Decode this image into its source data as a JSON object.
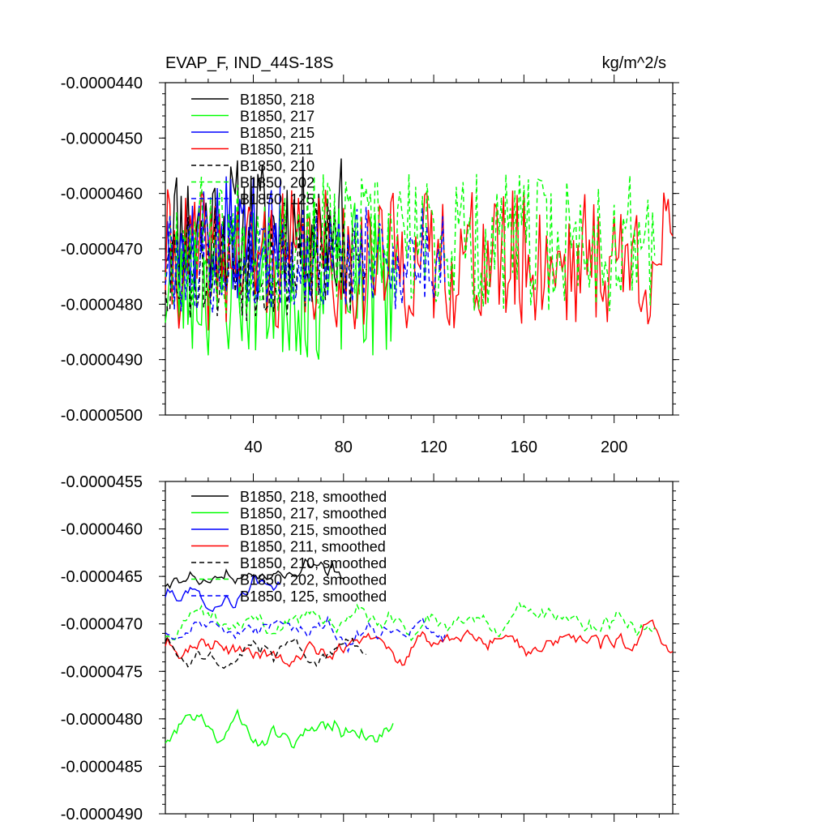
{
  "chart_data": [
    {
      "type": "line",
      "title": "EVAP_F, IND_44S-18S",
      "units": "kg/m^2/s",
      "xlabel": "",
      "ylabel": "",
      "xlim": [
        1,
        226
      ],
      "ylim": [
        -5e-05,
        -4.4e-05
      ],
      "xticks": [
        40,
        80,
        120,
        160,
        200
      ],
      "xtick_labels": [
        "40",
        "80",
        "120",
        "160",
        "200"
      ],
      "yticks": [
        -4.4e-05,
        -4.5e-05,
        -4.6e-05,
        -4.7e-05,
        -4.8e-05,
        -4.9e-05,
        -5e-05
      ],
      "ytick_labels": [
        "-0.0000440",
        "-0.0000450",
        "-0.0000460",
        "-0.0000470",
        "-0.0000480",
        "-0.0000490",
        "-0.0000500"
      ],
      "grid": false,
      "legend_position": "top-left",
      "series": [
        {
          "name": "B1850, 218",
          "color": "#000000",
          "dash": "solid",
          "length": 80,
          "mean": -4.66e-05,
          "amp": 8e-07,
          "seed": 11
        },
        {
          "name": "B1850, 217",
          "color": "#00ff00",
          "dash": "solid",
          "length": 102,
          "mean": -4.76e-05,
          "amp": 9e-07,
          "seed": 23
        },
        {
          "name": "B1850, 215",
          "color": "#0000ff",
          "dash": "solid",
          "length": 52,
          "mean": -4.68e-05,
          "amp": 7e-07,
          "seed": 37
        },
        {
          "name": "B1850, 211",
          "color": "#ff0000",
          "dash": "solid",
          "length": 226,
          "mean": -4.72e-05,
          "amp": 8e-07,
          "seed": 41
        },
        {
          "name": "B1850, 210",
          "color": "#000000",
          "dash": "dashed",
          "length": 90,
          "mean": -4.72e-05,
          "amp": 7e-07,
          "seed": 53
        },
        {
          "name": "B1850, 202",
          "color": "#00ff00",
          "dash": "dashed",
          "length": 218,
          "mean": -4.69e-05,
          "amp": 8e-07,
          "seed": 67
        },
        {
          "name": "B1850, 125",
          "color": "#0000ff",
          "dash": "dashed",
          "length": 125,
          "mean": -4.72e-05,
          "amp": 6e-07,
          "seed": 79
        }
      ]
    },
    {
      "type": "line",
      "title": "",
      "units": "",
      "xlabel": "",
      "ylabel": "",
      "xlim": [
        1,
        226
      ],
      "ylim": [
        -4.9e-05,
        -4.55e-05
      ],
      "xticks": [
        40,
        80,
        120,
        160,
        200
      ],
      "xtick_labels": [],
      "yticks": [
        -4.55e-05,
        -4.6e-05,
        -4.65e-05,
        -4.7e-05,
        -4.75e-05,
        -4.8e-05,
        -4.85e-05,
        -4.9e-05
      ],
      "ytick_labels": [
        "-0.0000455",
        "-0.0000460",
        "-0.0000465",
        "-0.0000470",
        "-0.0000475",
        "-0.0000480",
        "-0.0000485",
        "-0.0000490"
      ],
      "grid": false,
      "legend_position": "top-left",
      "series": [
        {
          "name": "B1850, 218, smoothed",
          "color": "#000000",
          "dash": "solid",
          "length": 80,
          "mean": -4.65e-05,
          "amp": 3e-07,
          "seed": 11
        },
        {
          "name": "B1850, 217, smoothed",
          "color": "#00ff00",
          "dash": "solid",
          "length": 102,
          "mean": -4.81e-05,
          "amp": 3e-07,
          "seed": 23
        },
        {
          "name": "B1850, 215, smoothed",
          "color": "#0000ff",
          "dash": "solid",
          "length": 52,
          "mean": -4.67e-05,
          "amp": 3e-07,
          "seed": 37
        },
        {
          "name": "B1850, 211, smoothed",
          "color": "#ff0000",
          "dash": "solid",
          "length": 226,
          "mean": -4.72e-05,
          "amp": 3e-07,
          "seed": 41
        },
        {
          "name": "B1850, 210, smoothed",
          "color": "#000000",
          "dash": "dashed",
          "length": 90,
          "mean": -4.73e-05,
          "amp": 3e-07,
          "seed": 53
        },
        {
          "name": "B1850, 202, smoothed",
          "color": "#00ff00",
          "dash": "dashed",
          "length": 218,
          "mean": -4.7e-05,
          "amp": 3e-07,
          "seed": 67
        },
        {
          "name": "B1850, 125, smoothed",
          "color": "#0000ff",
          "dash": "dashed",
          "length": 125,
          "mean": -4.71e-05,
          "amp": 3e-07,
          "seed": 79
        }
      ]
    }
  ]
}
